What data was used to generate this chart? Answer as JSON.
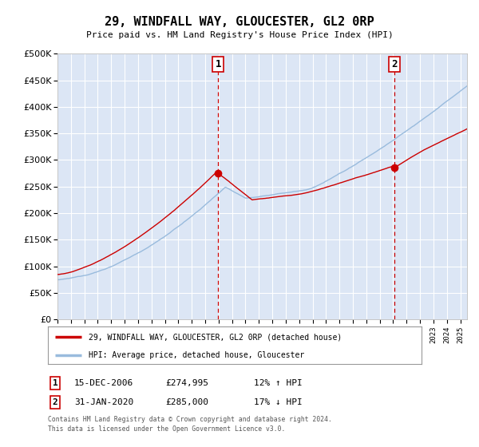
{
  "title": "29, WINDFALL WAY, GLOUCESTER, GL2 0RP",
  "subtitle": "Price paid vs. HM Land Registry's House Price Index (HPI)",
  "legend_property": "29, WINDFALL WAY, GLOUCESTER, GL2 0RP (detached house)",
  "legend_hpi": "HPI: Average price, detached house, Gloucester",
  "footnote1": "Contains HM Land Registry data © Crown copyright and database right 2024.",
  "footnote2": "This data is licensed under the Open Government Licence v3.0.",
  "sale1_date": "15-DEC-2006",
  "sale1_price": "£274,995",
  "sale1_hpi": "12% ↑ HPI",
  "sale2_date": "31-JAN-2020",
  "sale2_price": "£285,000",
  "sale2_hpi": "17% ↓ HPI",
  "sale1_year": 2006.96,
  "sale2_year": 2020.08,
  "sale1_value": 274995,
  "sale2_value": 285000,
  "ylim": [
    0,
    500000
  ],
  "xlim_start": 1995.0,
  "xlim_end": 2025.5,
  "background_color": "#dce6f5",
  "grid_color": "#ffffff",
  "red_line_color": "#cc0000",
  "blue_line_color": "#99bbdd",
  "vline_color": "#cc0000",
  "box_edgecolor": "#cc0000"
}
